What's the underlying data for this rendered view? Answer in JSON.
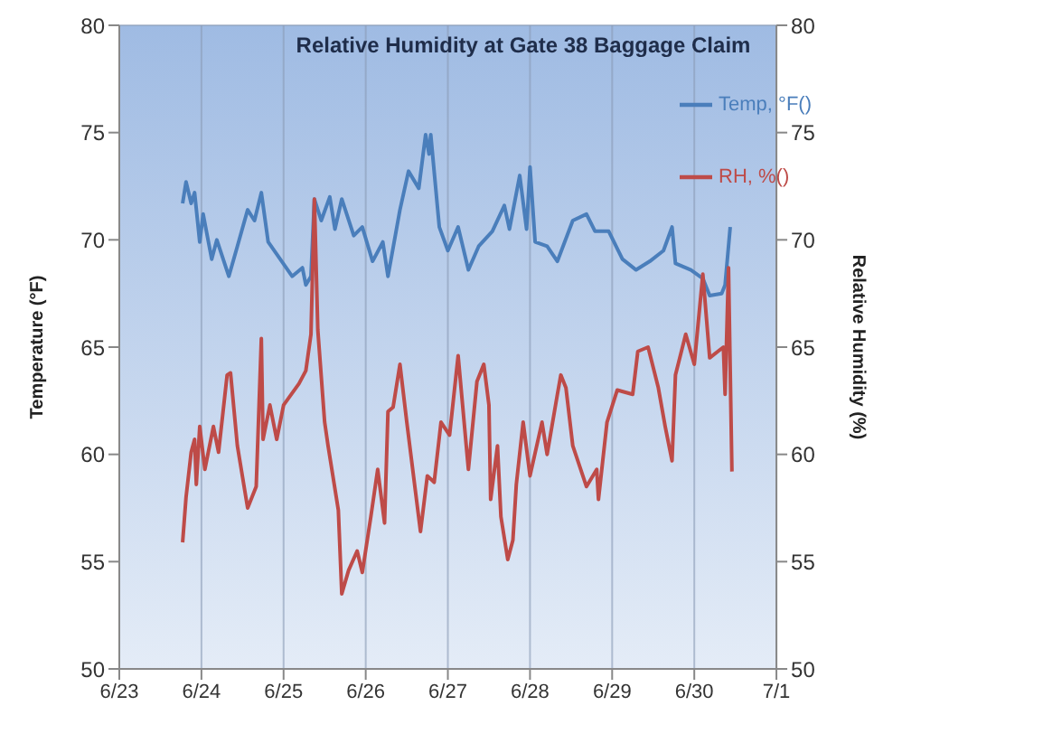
{
  "chart_data": {
    "type": "line",
    "title": "Relative Humidity at Gate 38 Baggage Claim",
    "ylabel": "Temperature  (°F)",
    "y2label": "Relative Humidity (%)",
    "xlim": [
      "--06-23",
      "--07-01"
    ],
    "xticks": [
      {
        "value": "--06-23",
        "label": "6/23"
      },
      {
        "value": "--06-24",
        "label": "6/24"
      },
      {
        "value": "--06-25",
        "label": "6/25"
      },
      {
        "value": "--06-26",
        "label": "6/26"
      },
      {
        "value": "--06-27",
        "label": "6/27"
      },
      {
        "value": "--06-28",
        "label": "6/28"
      },
      {
        "value": "--06-29",
        "label": "6/29"
      },
      {
        "value": "--06-30",
        "label": "6/30"
      },
      {
        "value": "--07-01",
        "label": "7/1"
      }
    ],
    "ylim": [
      50,
      80
    ],
    "yticks": [
      50,
      55,
      60,
      65,
      70,
      75,
      80
    ],
    "y2lim": [
      50,
      80
    ],
    "y2ticks": [
      50,
      55,
      60,
      65,
      70,
      75,
      80
    ],
    "grid": true,
    "legend": "top right",
    "marker": "none",
    "line_style": "solid",
    "series": [
      {
        "name": "Temp, °F()",
        "color": "#4a7ebb",
        "x": [
          "--06-23T18:30",
          "--06-23T19:30",
          "--06-23T21:00",
          "--06-23T22:00",
          "--06-23T23:30",
          "--06-24T00:30",
          "--06-24T03:00",
          "--06-24T04:30",
          "--06-24T08:00",
          "--06-24T10:30",
          "--06-24T13:30",
          "--06-24T15:30",
          "--06-24T17:30",
          "--06-24T19:30",
          "--06-24T23:00",
          "--06-25T02:30",
          "--06-25T05:30",
          "--06-25T06:30",
          "--06-25T08:00",
          "--06-25T09:00",
          "--06-25T11:00",
          "--06-25T13:30",
          "--06-25T15:00",
          "--06-25T17:00",
          "--06-25T20:30",
          "--06-25T23:00",
          "--06-26T02:00",
          "--06-26T05:00",
          "--06-26T06:30",
          "--06-26T10:00",
          "--06-26T12:30",
          "--06-26T15:30",
          "--06-26T17:30",
          "--06-26T18:30",
          "--06-26T19:00",
          "--06-26T21:30",
          "--06-27T00:00",
          "--06-27T03:00",
          "--06-27T06:00",
          "--06-27T09:00",
          "--06-27T13:00",
          "--06-27T16:30",
          "--06-27T18:00",
          "--06-27T21:00",
          "--06-27T23:00",
          "--06-28T00:00",
          "--06-28T01:30",
          "--06-28T05:00",
          "--06-28T08:00",
          "--06-28T12:30",
          "--06-28T16:30",
          "--06-28T19:00",
          "--06-28T23:00",
          "--06-29T03:00",
          "--06-29T07:00",
          "--06-29T11:00",
          "--06-29T15:00",
          "--06-29T17:30",
          "--06-29T18:30",
          "--06-29T23:00",
          "--06-30T02:30",
          "--06-30T04:30",
          "--06-30T08:00",
          "--06-30T09:00",
          "--06-30T10:30"
        ],
        "values": [
          71.7,
          72.7,
          71.7,
          72.2,
          69.9,
          71.2,
          69.1,
          70.0,
          68.3,
          69.7,
          71.4,
          70.9,
          72.2,
          69.9,
          69.1,
          68.3,
          68.7,
          67.9,
          68.3,
          71.9,
          70.9,
          72.0,
          70.5,
          71.9,
          70.2,
          70.6,
          69.0,
          69.9,
          68.3,
          71.4,
          73.2,
          72.4,
          74.9,
          74.0,
          74.9,
          70.6,
          69.5,
          70.6,
          68.6,
          69.7,
          70.4,
          71.6,
          70.5,
          73.0,
          70.5,
          73.4,
          69.9,
          69.7,
          69.0,
          70.9,
          71.2,
          70.4,
          70.4,
          69.1,
          68.6,
          69.0,
          69.5,
          70.6,
          68.9,
          68.6,
          68.2,
          67.4,
          67.5,
          67.9,
          70.6
        ]
      },
      {
        "name": "RH, %()",
        "color": "#be4b48",
        "axis": "y2",
        "x": [
          "--06-23T18:30",
          "--06-23T19:30",
          "--06-23T21:00",
          "--06-23T22:00",
          "--06-23T22:30",
          "--06-23T23:30",
          "--06-24T01:00",
          "--06-24T03:30",
          "--06-24T05:00",
          "--06-24T07:30",
          "--06-24T08:30",
          "--06-24T10:30",
          "--06-24T13:30",
          "--06-24T16:00",
          "--06-24T17:30",
          "--06-24T18:00",
          "--06-24T20:00",
          "--06-24T22:00",
          "--06-25T00:00",
          "--06-25T04:30",
          "--06-25T06:30",
          "--06-25T08:00",
          "--06-25T09:00",
          "--06-25T10:00",
          "--06-25T12:00",
          "--06-25T13:00",
          "--06-25T16:00",
          "--06-25T17:00",
          "--06-25T19:00",
          "--06-25T21:30",
          "--06-25T23:00",
          "--06-26T01:30",
          "--06-26T03:30",
          "--06-26T05:30",
          "--06-26T06:30",
          "--06-26T08:00",
          "--06-26T10:00",
          "--06-26T12:00",
          "--06-26T16:00",
          "--06-26T18:00",
          "--06-26T20:00",
          "--06-26T22:00",
          "--06-27T00:30",
          "--06-27T03:00",
          "--06-27T06:00",
          "--06-27T08:30",
          "--06-27T10:30",
          "--06-27T12:00",
          "--06-27T12:30",
          "--06-27T14:30",
          "--06-27T15:30",
          "--06-27T17:30",
          "--06-27T19:00",
          "--06-27T20:00",
          "--06-27T22:00",
          "--06-28T00:00",
          "--06-28T03:30",
          "--06-28T05:00",
          "--06-28T08:00",
          "--06-28T09:00",
          "--06-28T10:30",
          "--06-28T12:30",
          "--06-28T16:30",
          "--06-28T19:30",
          "--06-28T20:00",
          "--06-28T22:30",
          "--06-29T01:30",
          "--06-29T06:00",
          "--06-29T07:30",
          "--06-29T10:30",
          "--06-29T13:30",
          "--06-29T15:30",
          "--06-29T17:30",
          "--06-29T18:30",
          "--06-29T21:30",
          "--06-30T00:00",
          "--06-30T02:30",
          "--06-30T04:30",
          "--06-30T08:30",
          "--06-30T09:00",
          "--06-30T10:00",
          "--06-30T11:00"
        ],
        "values": [
          55.9,
          58.0,
          60.1,
          60.7,
          58.6,
          61.3,
          59.3,
          61.3,
          60.1,
          63.7,
          63.8,
          60.4,
          57.5,
          58.5,
          65.4,
          60.7,
          62.3,
          60.7,
          62.3,
          63.3,
          63.9,
          65.6,
          71.9,
          65.8,
          61.5,
          60.4,
          57.4,
          53.5,
          54.6,
          55.5,
          54.5,
          57.1,
          59.3,
          56.8,
          62.0,
          62.2,
          64.2,
          61.5,
          56.4,
          59.0,
          58.7,
          61.5,
          60.9,
          64.6,
          59.3,
          63.4,
          64.2,
          62.3,
          57.9,
          60.4,
          57.1,
          55.1,
          56.0,
          58.6,
          61.5,
          59.0,
          61.5,
          60.0,
          62.8,
          63.7,
          63.1,
          60.4,
          58.5,
          59.3,
          57.9,
          61.5,
          63.0,
          62.8,
          64.8,
          65.0,
          63.1,
          61.3,
          59.7,
          63.7,
          65.6,
          64.2,
          68.4,
          64.5,
          65.0,
          62.8,
          68.7,
          59.2
        ]
      }
    ]
  }
}
